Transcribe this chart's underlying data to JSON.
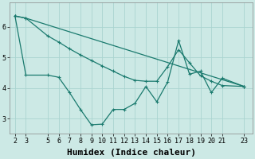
{
  "background_color": "#cce9e5",
  "grid_color": "#aad4d0",
  "line_color": "#1a7a6e",
  "xlabel": "Humidex (Indice chaleur)",
  "xlabel_fontsize": 8,
  "tick_fontsize": 6,
  "yticks": [
    3,
    4,
    5,
    6
  ],
  "ylim": [
    2.5,
    6.8
  ],
  "xlim": [
    1.5,
    23.8
  ],
  "xtick_labels": [
    "2",
    "3",
    "5",
    "6",
    "7",
    "8",
    "9",
    "10",
    "11",
    "12",
    "13",
    "14",
    "15",
    "16",
    "17",
    "18",
    "19",
    "20",
    "21",
    "23"
  ],
  "xtick_positions": [
    2,
    3,
    5,
    6,
    7,
    8,
    9,
    10,
    11,
    12,
    13,
    14,
    15,
    16,
    17,
    18,
    19,
    20,
    21,
    23
  ],
  "line1_x": [
    2,
    3,
    5,
    6,
    7,
    8,
    9,
    10,
    11,
    12,
    13,
    14,
    15,
    16,
    17,
    18,
    19,
    20,
    21,
    23
  ],
  "line1_y": [
    6.35,
    4.42,
    4.42,
    4.35,
    3.85,
    3.3,
    2.8,
    2.82,
    3.3,
    3.3,
    3.5,
    4.05,
    3.55,
    4.2,
    5.55,
    4.45,
    4.55,
    3.85,
    4.32,
    4.05
  ],
  "line2_x": [
    2,
    3,
    23
  ],
  "line2_y": [
    6.35,
    6.28,
    4.05
  ],
  "line3_x": [
    2,
    3,
    5,
    6,
    7,
    8,
    9,
    10,
    11,
    12,
    13,
    14,
    15,
    16,
    17,
    18,
    19,
    20,
    21,
    23
  ],
  "line3_y": [
    6.35,
    6.28,
    5.7,
    5.5,
    5.28,
    5.08,
    4.9,
    4.72,
    4.55,
    4.38,
    4.25,
    4.22,
    4.22,
    4.7,
    5.25,
    4.82,
    4.4,
    4.22,
    4.08,
    4.05
  ],
  "marker": "+",
  "marker_size": 3,
  "linewidth": 0.9
}
